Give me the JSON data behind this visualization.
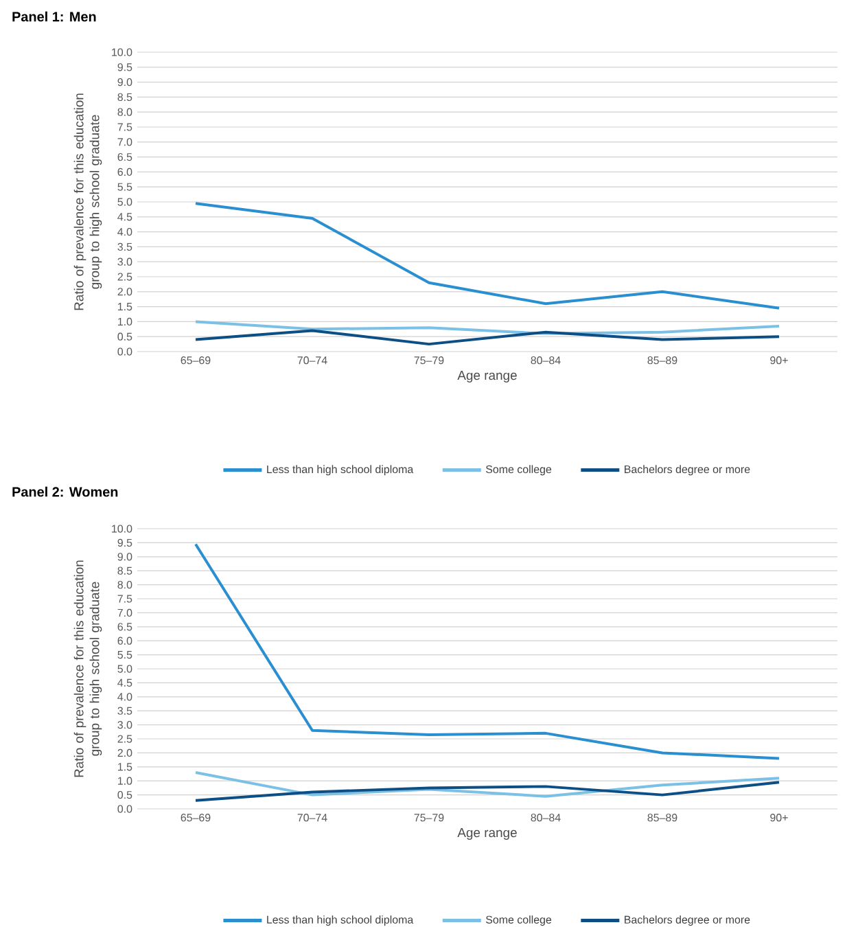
{
  "chart_data": [
    {
      "type": "line",
      "title": "Panel 1: Men",
      "xlabel": "Age range",
      "ylabel": "Ratio of prevalence for this education group to high school graduate",
      "categories": [
        "65–69",
        "70–74",
        "75–79",
        "80–84",
        "85–89",
        "90+"
      ],
      "series": [
        {
          "name": "Less than high school diploma",
          "color": "#2a8fd0",
          "values": [
            4.95,
            4.45,
            2.3,
            1.6,
            2.0,
            1.45
          ]
        },
        {
          "name": "Some college",
          "color": "#7cc0e6",
          "values": [
            1.0,
            0.75,
            0.8,
            0.6,
            0.65,
            0.85
          ]
        },
        {
          "name": "Bachelors degree or more",
          "color": "#0d4f84",
          "values": [
            0.4,
            0.7,
            0.25,
            0.65,
            0.4,
            0.5
          ]
        }
      ],
      "ylim": [
        0,
        10
      ],
      "yticks": [
        {
          "value": 0,
          "label": "0.0"
        },
        {
          "value": 0.5,
          "label": "0.5"
        },
        {
          "value": 1,
          "label": "1.0"
        },
        {
          "value": 1.5,
          "label": "1.5"
        },
        {
          "value": 2,
          "label": "2.0"
        },
        {
          "value": 2.5,
          "label": "2.5"
        },
        {
          "value": 3,
          "label": "3.0"
        },
        {
          "value": 3.5,
          "label": "3.5"
        },
        {
          "value": 4,
          "label": "4.0"
        },
        {
          "value": 4.5,
          "label": "4.5"
        },
        {
          "value": 5,
          "label": "5.0"
        },
        {
          "value": 5.5,
          "label": "5.5"
        },
        {
          "value": 6,
          "label": "6.0"
        },
        {
          "value": 6.5,
          "label": "6.5"
        },
        {
          "value": 7,
          "label": "7.0"
        },
        {
          "value": 7.5,
          "label": "7.5"
        },
        {
          "value": 8,
          "label": "8.0"
        },
        {
          "value": 8.5,
          "label": "8.5"
        },
        {
          "value": 9,
          "label": "9.0"
        },
        {
          "value": 9.5,
          "label": "9.5"
        },
        {
          "value": 10,
          "label": "10.0"
        }
      ],
      "grid": "y",
      "legend": "bottom"
    },
    {
      "type": "line",
      "title": "Panel 2: Women",
      "xlabel": "Age range",
      "ylabel": "Ratio of prevalence for this education group to high school graduate",
      "categories": [
        "65–69",
        "70–74",
        "75–79",
        "80–84",
        "85–89",
        "90+"
      ],
      "series": [
        {
          "name": "Less than high school diploma",
          "color": "#2a8fd0",
          "values": [
            9.45,
            2.8,
            2.65,
            2.7,
            2.0,
            1.8
          ]
        },
        {
          "name": "Some college",
          "color": "#7cc0e6",
          "values": [
            1.3,
            0.5,
            0.7,
            0.45,
            0.85,
            1.1
          ]
        },
        {
          "name": "Bachelors degree or more",
          "color": "#0d4f84",
          "values": [
            0.3,
            0.6,
            0.75,
            0.8,
            0.5,
            0.95
          ]
        }
      ],
      "ylim": [
        0,
        10
      ],
      "yticks": [
        {
          "value": 0,
          "label": "0.0"
        },
        {
          "value": 0.5,
          "label": "0.5"
        },
        {
          "value": 1,
          "label": "1.0"
        },
        {
          "value": 1.5,
          "label": "1.5"
        },
        {
          "value": 2,
          "label": "2.0"
        },
        {
          "value": 2.5,
          "label": "2.5"
        },
        {
          "value": 3,
          "label": "3.0"
        },
        {
          "value": 3.5,
          "label": "3.5"
        },
        {
          "value": 4,
          "label": "4.0"
        },
        {
          "value": 4.5,
          "label": "4.5"
        },
        {
          "value": 5,
          "label": "5.0"
        },
        {
          "value": 5.5,
          "label": "5.5"
        },
        {
          "value": 6,
          "label": "6.0"
        },
        {
          "value": 6.5,
          "label": "6.5"
        },
        {
          "value": 7,
          "label": "7.0"
        },
        {
          "value": 7.5,
          "label": "7.5"
        },
        {
          "value": 8,
          "label": "8.0"
        },
        {
          "value": 8.5,
          "label": "8.5"
        },
        {
          "value": 9,
          "label": "9.0"
        },
        {
          "value": 9.5,
          "label": "9.5"
        },
        {
          "value": 10,
          "label": "10.0"
        }
      ],
      "grid": "y",
      "legend": "bottom"
    }
  ]
}
